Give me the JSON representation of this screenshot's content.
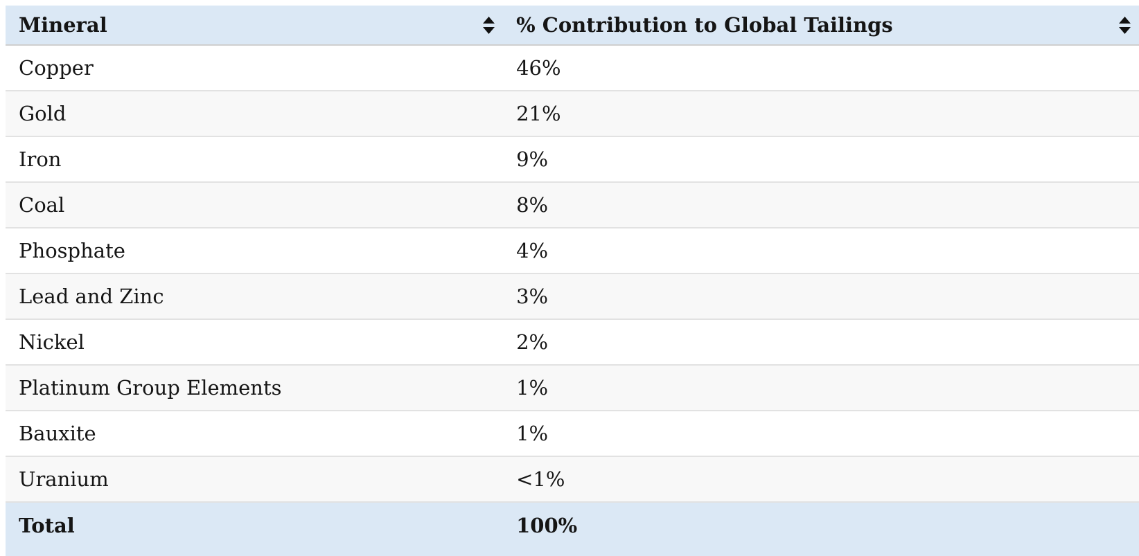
{
  "table": {
    "columns": [
      {
        "label": "Mineral",
        "sortable": true,
        "sort_icon": "sort-arrows"
      },
      {
        "label": "% Contribution to Global Tailings",
        "sortable": true,
        "sort_icon": "sort-arrows"
      }
    ],
    "rows": [
      {
        "mineral": "Copper",
        "contribution": "46%"
      },
      {
        "mineral": "Gold",
        "contribution": "21%"
      },
      {
        "mineral": "Iron",
        "contribution": "9%"
      },
      {
        "mineral": "Coal",
        "contribution": "8%"
      },
      {
        "mineral": "Phosphate",
        "contribution": "4%"
      },
      {
        "mineral": "Lead and Zinc",
        "contribution": "3%"
      },
      {
        "mineral": "Nickel",
        "contribution": "2%"
      },
      {
        "mineral": "Platinum Group Elements",
        "contribution": "1%"
      },
      {
        "mineral": "Bauxite",
        "contribution": "1%"
      },
      {
        "mineral": "Uranium",
        "contribution": "<1%"
      }
    ],
    "footer": {
      "label": "Total",
      "value": "100%"
    },
    "colors": {
      "header_bg": "#dbe8f5",
      "row_bg": "#ffffff",
      "row_alt_bg": "#f8f8f8",
      "row_border": "#e2e2e2",
      "header_border": "#cfcfcf",
      "text": "#151515"
    }
  }
}
